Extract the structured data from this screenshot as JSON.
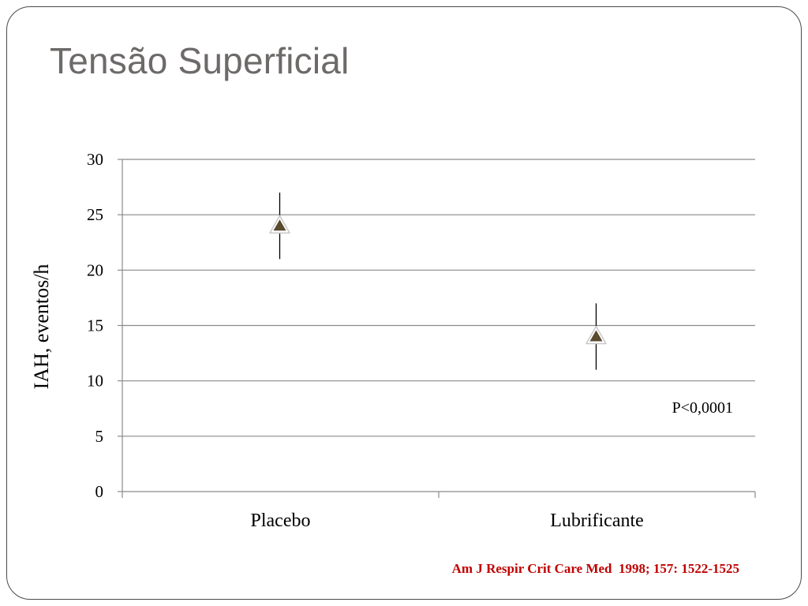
{
  "slide": {
    "title": "Tensão Superficial",
    "citation": "Am J Respir Crit Care Med  1998; 157: 1522-1525"
  },
  "colors": {
    "title": "#6d6a69",
    "marker_fill": "#5a4a2e",
    "citation": "#c00000",
    "gridline": "#8a8a8a"
  },
  "chart_data": {
    "type": "scatter",
    "categories": [
      "Placebo",
      "Lubrificante"
    ],
    "series": [
      {
        "marker": "triangle",
        "values": [
          24,
          14
        ],
        "error_low": [
          21,
          11
        ],
        "error_high": [
          27,
          17
        ]
      }
    ],
    "ylabel": "IAH, eventos/h",
    "xlabel": "",
    "ylim": [
      0,
      30
    ],
    "yticks": [
      0,
      5,
      10,
      15,
      20,
      25,
      30
    ],
    "grid": true,
    "legend": "none",
    "annotations": [
      {
        "text": "P<0,0001",
        "near": "Lubrificante",
        "y": 7.5
      }
    ]
  }
}
